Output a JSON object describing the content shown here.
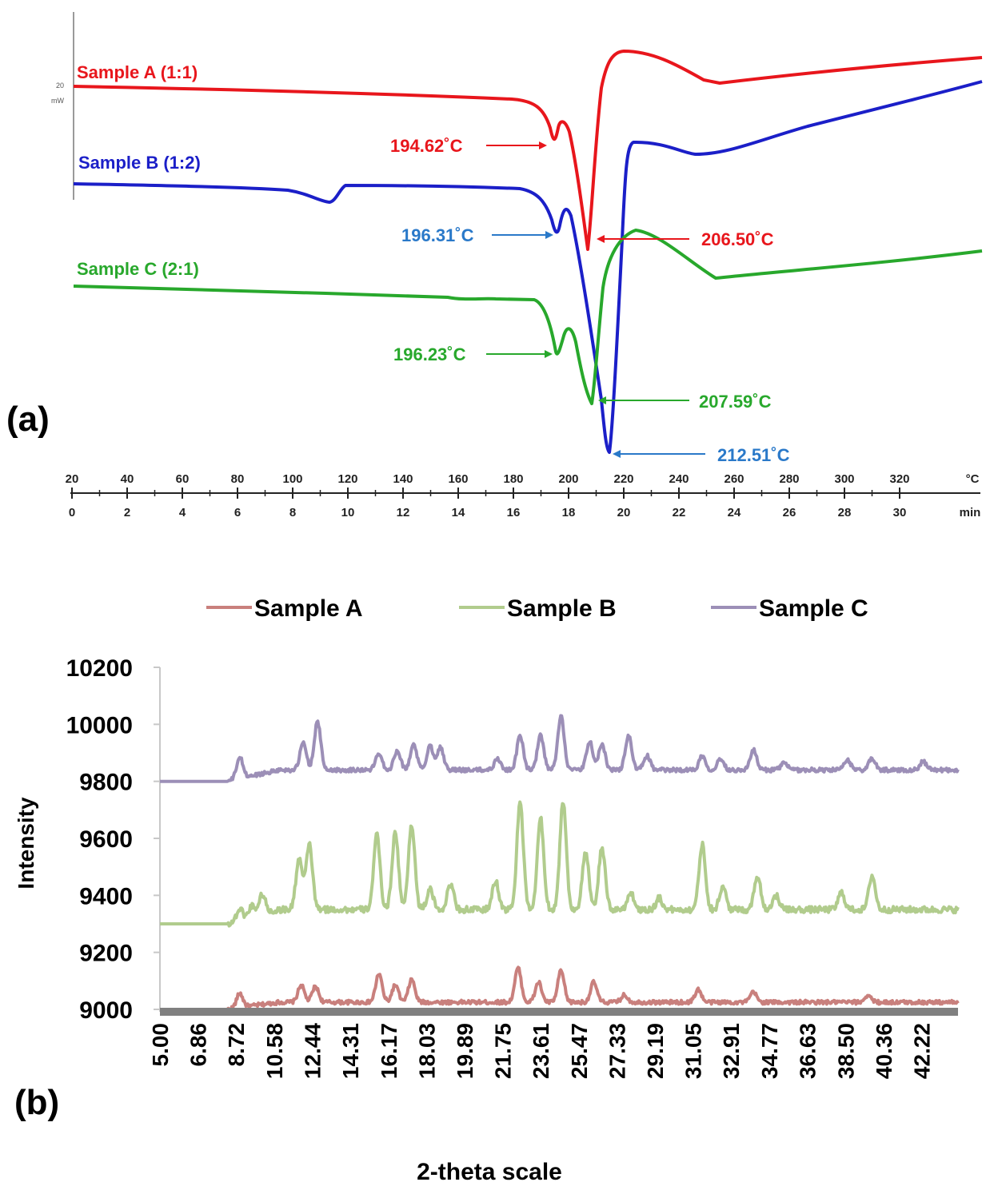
{
  "panels": {
    "a_label": "(a)",
    "b_label": "(b)"
  },
  "chart_data": [
    {
      "type": "line",
      "colors": {
        "A": "#e8161c",
        "B": "#1b1fc8",
        "C": "#28a82c"
      },
      "annotation_colors": {
        "A": "#e8161c",
        "B": "#2a79c9",
        "C": "#28a82c"
      },
      "y_scale_label": "20",
      "y_scale_unit": "mW",
      "x_temp_unit": "°C",
      "x_time_unit": "min",
      "x_temp_ticks": [
        "20",
        "40",
        "60",
        "80",
        "100",
        "120",
        "140",
        "160",
        "180",
        "200",
        "220",
        "240",
        "260",
        "280",
        "300",
        "320"
      ],
      "x_time_ticks": [
        "0",
        "2",
        "4",
        "6",
        "8",
        "10",
        "12",
        "14",
        "16",
        "18",
        "20",
        "22",
        "24",
        "26",
        "28",
        "30"
      ],
      "series": [
        {
          "key": "A",
          "name": "Sample A (1:1)"
        },
        {
          "key": "B",
          "name": "Sample B (1:2)"
        },
        {
          "key": "C",
          "name": "Sample C (2:1)"
        }
      ],
      "annotations": [
        {
          "key": "A",
          "text": "194.62˚C"
        },
        {
          "key": "A",
          "text": "206.50˚C"
        },
        {
          "key": "B",
          "text": "196.31˚C"
        },
        {
          "key": "B",
          "text": "212.51˚C"
        },
        {
          "key": "C",
          "text": "196.23˚C"
        },
        {
          "key": "C",
          "text": "207.59˚C"
        }
      ]
    },
    {
      "type": "line",
      "xlabel": "2-theta scale",
      "ylabel": "Intensity",
      "ylim": [
        9000,
        10200
      ],
      "y_ticks": [
        9000,
        9200,
        9400,
        9600,
        9800,
        10000,
        10200
      ],
      "xlim": [
        5.0,
        44.0
      ],
      "x_tick_labels": [
        "5.00",
        "6.86",
        "8.72",
        "10.58",
        "12.44",
        "14.31",
        "16.17",
        "18.03",
        "19.89",
        "21.75",
        "23.61",
        "25.47",
        "27.33",
        "29.19",
        "31.05",
        "32.91",
        "34.77",
        "36.63",
        "38.50",
        "40.36",
        "42.22"
      ],
      "legend_position": "top",
      "series": [
        {
          "name": "Sample A",
          "color": "#c9807d",
          "baseline": 9000,
          "end_level": 9025,
          "peaks": [
            [
              8.9,
              50
            ],
            [
              11.9,
              60
            ],
            [
              12.6,
              55
            ],
            [
              15.7,
              100
            ],
            [
              16.5,
              60
            ],
            [
              17.3,
              80
            ],
            [
              22.5,
              120
            ],
            [
              23.5,
              70
            ],
            [
              24.6,
              110
            ],
            [
              26.2,
              70
            ],
            [
              27.7,
              25
            ],
            [
              31.3,
              45
            ],
            [
              34.0,
              35
            ],
            [
              39.6,
              25
            ]
          ]
        },
        {
          "name": "Sample B",
          "color": "#b1cc8d",
          "baseline": 9300,
          "end_level": 9350,
          "peaks": [
            [
              8.9,
              40
            ],
            [
              9.5,
              40
            ],
            [
              10.0,
              70
            ],
            [
              11.8,
              180
            ],
            [
              12.3,
              230
            ],
            [
              15.6,
              260
            ],
            [
              16.5,
              270
            ],
            [
              17.3,
              300
            ],
            [
              18.2,
              70
            ],
            [
              19.2,
              90
            ],
            [
              21.4,
              100
            ],
            [
              22.6,
              380
            ],
            [
              23.6,
              320
            ],
            [
              24.7,
              380
            ],
            [
              25.8,
              200
            ],
            [
              26.6,
              220
            ],
            [
              28.0,
              60
            ],
            [
              29.4,
              40
            ],
            [
              31.5,
              230
            ],
            [
              32.5,
              80
            ],
            [
              34.2,
              120
            ],
            [
              35.1,
              50
            ],
            [
              38.3,
              60
            ],
            [
              39.8,
              120
            ]
          ]
        },
        {
          "name": "Sample C",
          "color": "#9c8fb7",
          "baseline": 9800,
          "end_level": 9840,
          "peaks": [
            [
              8.9,
              75
            ],
            [
              12.0,
              95
            ],
            [
              12.7,
              170
            ],
            [
              15.7,
              60
            ],
            [
              16.6,
              70
            ],
            [
              17.4,
              90
            ],
            [
              18.2,
              85
            ],
            [
              18.7,
              80
            ],
            [
              21.5,
              40
            ],
            [
              22.6,
              120
            ],
            [
              23.6,
              120
            ],
            [
              24.6,
              190
            ],
            [
              26.0,
              100
            ],
            [
              26.6,
              90
            ],
            [
              27.9,
              120
            ],
            [
              28.8,
              50
            ],
            [
              31.5,
              50
            ],
            [
              32.4,
              40
            ],
            [
              34.0,
              70
            ],
            [
              35.5,
              25
            ],
            [
              38.6,
              35
            ],
            [
              39.8,
              40
            ],
            [
              42.3,
              30
            ]
          ]
        }
      ]
    }
  ]
}
